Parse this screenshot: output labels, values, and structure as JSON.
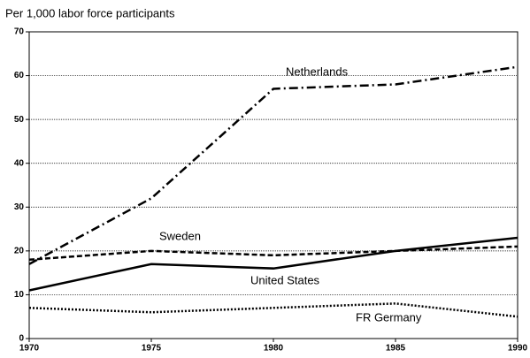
{
  "chart_data": {
    "type": "line",
    "y_label": "Per 1,000 labor force participants",
    "x": [
      1970,
      1975,
      1980,
      1985,
      1990
    ],
    "xlim": [
      1970,
      1990
    ],
    "xticks": [
      1970,
      1975,
      1980,
      1985,
      1990
    ],
    "ylim": [
      0,
      70
    ],
    "yticks": [
      0,
      10,
      20,
      30,
      40,
      50,
      60,
      70
    ],
    "grid": true,
    "series": [
      {
        "name": "Netherlands",
        "color": "#000000",
        "style": "dashdot",
        "values": [
          17,
          32,
          57,
          58,
          62
        ]
      },
      {
        "name": "Sweden",
        "color": "#000000",
        "style": "dashed",
        "values": [
          18,
          20,
          19,
          20,
          21
        ]
      },
      {
        "name": "United States",
        "color": "#000000",
        "style": "solid",
        "values": [
          11,
          17,
          16,
          20,
          23
        ]
      },
      {
        "name": "FR Germany",
        "color": "#000000",
        "style": "dotted",
        "values": [
          7,
          6,
          7,
          8,
          5
        ]
      }
    ]
  }
}
